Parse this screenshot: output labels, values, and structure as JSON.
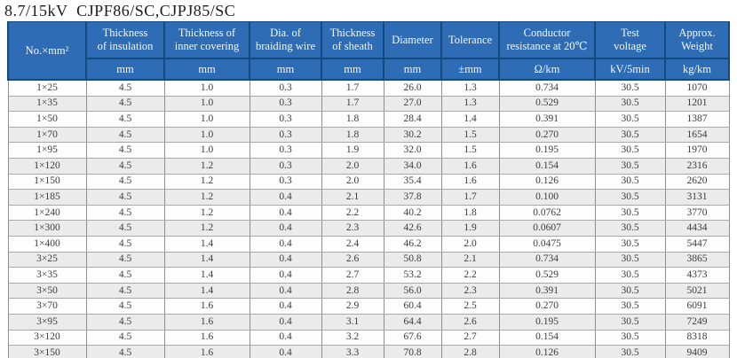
{
  "title": "8.7/15kV  CJPF86/SC,CJPJ85/SC",
  "colors": {
    "header_bg": "#2e6db5",
    "header_border": "#16497f",
    "header_text": "#f2f6fb",
    "row_alt_bg": "#ebebeb",
    "grid_line": "#8f8f8f",
    "body_text": "#3c3c3c"
  },
  "table": {
    "columns": [
      {
        "label": "No.×mm²",
        "unit": ""
      },
      {
        "label": "Thickness\nof insulation",
        "unit": "mm"
      },
      {
        "label": "Thickness of\ninner covering",
        "unit": "mm"
      },
      {
        "label": "Dia. of\nbraiding wire",
        "unit": "mm"
      },
      {
        "label": "Thickness\nof sheath",
        "unit": "mm"
      },
      {
        "label": "Diameter",
        "unit": "mm"
      },
      {
        "label": "Tolerance",
        "unit": "±mm"
      },
      {
        "label": "Conductor\nresistance at 20℃",
        "unit": "Ω/km"
      },
      {
        "label": "Test\nvoltage",
        "unit": "kV/5min"
      },
      {
        "label": "Approx.\nWeight",
        "unit": "kg/km"
      }
    ],
    "rows": [
      [
        "1×25",
        "4.5",
        "1.0",
        "0.3",
        "1.7",
        "26.0",
        "1.3",
        "0.734",
        "30.5",
        "1070"
      ],
      [
        "1×35",
        "4.5",
        "1.0",
        "0.3",
        "1.7",
        "27.0",
        "1.3",
        "0.529",
        "30.5",
        "1201"
      ],
      [
        "1×50",
        "4.5",
        "1.0",
        "0.3",
        "1.8",
        "28.4",
        "1.4",
        "0.391",
        "30.5",
        "1387"
      ],
      [
        "1×70",
        "4.5",
        "1.0",
        "0.3",
        "1.8",
        "30.2",
        "1.5",
        "0.270",
        "30.5",
        "1654"
      ],
      [
        "1×95",
        "4.5",
        "1.0",
        "0.3",
        "1.9",
        "32.0",
        "1.5",
        "0.195",
        "30.5",
        "1970"
      ],
      [
        "1×120",
        "4.5",
        "1.2",
        "0.3",
        "2.0",
        "34.0",
        "1.6",
        "0.154",
        "30.5",
        "2316"
      ],
      [
        "1×150",
        "4.5",
        "1.2",
        "0.3",
        "2.0",
        "35.4",
        "1.6",
        "0.126",
        "30.5",
        "2620"
      ],
      [
        "1×185",
        "4.5",
        "1.2",
        "0.4",
        "2.1",
        "37.8",
        "1.7",
        "0.100",
        "30.5",
        "3131"
      ],
      [
        "1×240",
        "4.5",
        "1.2",
        "0.4",
        "2.2",
        "40.2",
        "1.8",
        "0.0762",
        "30.5",
        "3770"
      ],
      [
        "1×300",
        "4.5",
        "1.2",
        "0.4",
        "2.3",
        "42.6",
        "1.9",
        "0.0607",
        "30.5",
        "4434"
      ],
      [
        "1×400",
        "4.5",
        "1.4",
        "0.4",
        "2.4",
        "46.2",
        "2.0",
        "0.0475",
        "30.5",
        "5447"
      ],
      [
        "3×25",
        "4.5",
        "1.4",
        "0.4",
        "2.6",
        "50.8",
        "2.1",
        "0.734",
        "30.5",
        "3865"
      ],
      [
        "3×35",
        "4.5",
        "1.4",
        "0.4",
        "2.7",
        "53.2",
        "2.2",
        "0.529",
        "30.5",
        "4373"
      ],
      [
        "3×50",
        "4.5",
        "1.4",
        "0.4",
        "2.8",
        "56.0",
        "2.3",
        "0.391",
        "30.5",
        "5021"
      ],
      [
        "3×70",
        "4.5",
        "1.6",
        "0.4",
        "2.9",
        "60.4",
        "2.5",
        "0.270",
        "30.5",
        "6091"
      ],
      [
        "3×95",
        "4.5",
        "1.6",
        "0.4",
        "3.1",
        "64.4",
        "2.6",
        "0.195",
        "30.5",
        "7249"
      ],
      [
        "3×120",
        "4.5",
        "1.6",
        "0.4",
        "3.2",
        "67.6",
        "2.7",
        "0.154",
        "30.5",
        "8318"
      ],
      [
        "3×150",
        "4.5",
        "1.6",
        "0.4",
        "3.3",
        "70.8",
        "2.8",
        "0.126",
        "30.5",
        "9409"
      ]
    ]
  }
}
